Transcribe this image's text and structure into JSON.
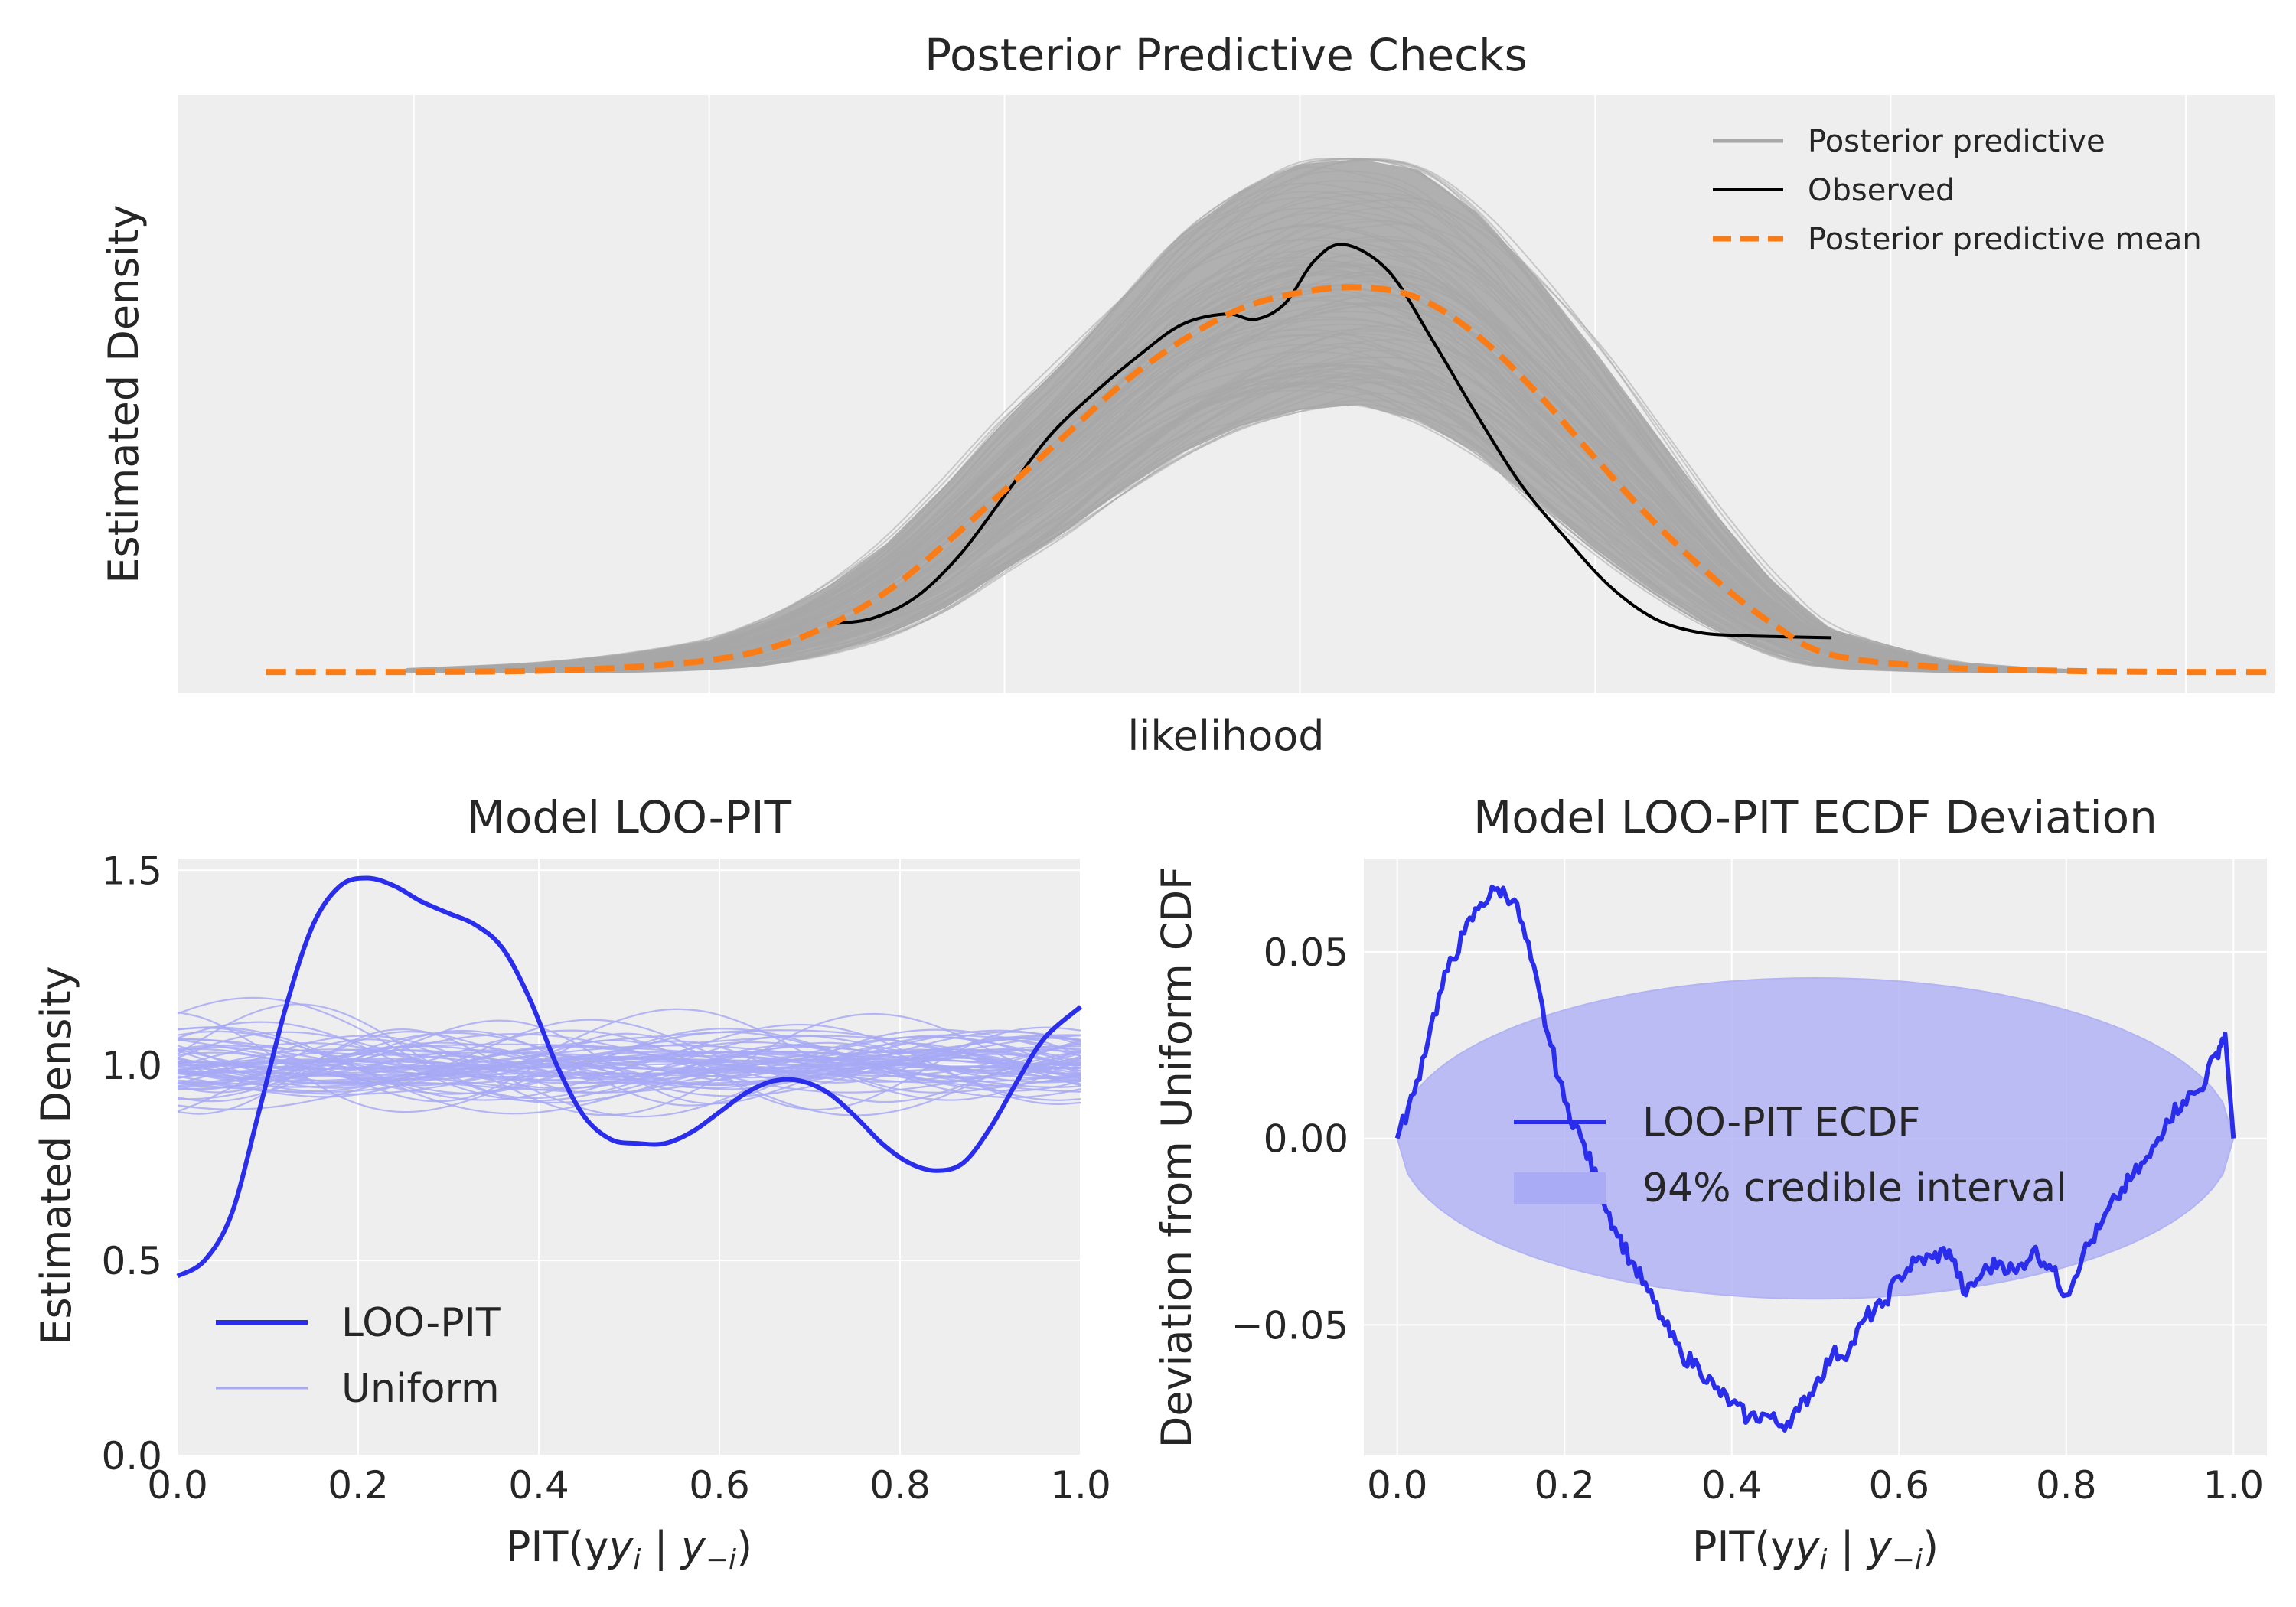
{
  "colors": {
    "panel_bg": "#eeeeee",
    "grid": "#ffffff",
    "posterior_predictive": "#a8a8a8",
    "observed": "#000000",
    "pp_mean": "#fa7c17",
    "loo_pit": "#2a2eec",
    "uniform": "#a7a9f5",
    "band_fill": "#b3b4f5",
    "text": "#262626"
  },
  "chart_data": [
    {
      "type": "line",
      "title": "Posterior Predictive Checks",
      "xlabel": "likelihood",
      "ylabel": "Estimated Density",
      "ticks_hidden": true,
      "grid": true,
      "legend": {
        "placement": "top-right",
        "entries": [
          "Posterior predictive",
          "Observed",
          "Posterior predictive mean"
        ]
      },
      "xlim": [
        -3.8,
        3.3
      ],
      "ylim": [
        -0.02,
        0.54
      ],
      "observed": {
        "x": [
          -1.6,
          -1.45,
          -1.3,
          -1.15,
          -1.0,
          -0.85,
          -0.7,
          -0.55,
          -0.4,
          -0.25,
          -0.15,
          -0.05,
          0.05,
          0.15,
          0.3,
          0.45,
          0.6,
          0.75,
          0.9,
          1.05,
          1.2,
          1.35,
          1.5,
          1.62,
          1.8
        ],
        "y": [
          0.045,
          0.05,
          0.07,
          0.11,
          0.165,
          0.22,
          0.26,
          0.295,
          0.325,
          0.335,
          0.33,
          0.345,
          0.385,
          0.4,
          0.375,
          0.31,
          0.24,
          0.175,
          0.125,
          0.08,
          0.05,
          0.037,
          0.034,
          0.033,
          0.032
        ]
      },
      "pp_mean": {
        "x": [
          -3.5,
          -3.0,
          -2.6,
          -2.3,
          -2.0,
          -1.8,
          -1.6,
          -1.4,
          -1.2,
          -1.0,
          -0.8,
          -0.6,
          -0.4,
          -0.2,
          0.0,
          0.2,
          0.4,
          0.6,
          0.8,
          1.0,
          1.2,
          1.4,
          1.6,
          1.8,
          2.2,
          2.6,
          3.0,
          3.3
        ],
        "y": [
          0.0,
          0.0,
          0.001,
          0.004,
          0.011,
          0.022,
          0.043,
          0.075,
          0.12,
          0.17,
          0.22,
          0.27,
          0.31,
          0.34,
          0.355,
          0.36,
          0.35,
          0.315,
          0.262,
          0.2,
          0.14,
          0.088,
          0.045,
          0.016,
          0.004,
          0.001,
          0.0,
          0.0
        ]
      },
      "posterior_predictive_band": {
        "x": [
          -3.0,
          -2.6,
          -2.3,
          -2.0,
          -1.8,
          -1.6,
          -1.4,
          -1.2,
          -1.0,
          -0.8,
          -0.6,
          -0.4,
          -0.2,
          0.0,
          0.2,
          0.4,
          0.6,
          0.8,
          1.0,
          1.2,
          1.4,
          1.6,
          1.8,
          2.2,
          2.6
        ],
        "lower": [
          0.0,
          0.0,
          0.0,
          0.003,
          0.008,
          0.018,
          0.035,
          0.06,
          0.095,
          0.13,
          0.17,
          0.205,
          0.23,
          0.245,
          0.25,
          0.235,
          0.205,
          0.16,
          0.115,
          0.075,
          0.042,
          0.018,
          0.005,
          0.0,
          0.0
        ],
        "upper": [
          0.003,
          0.008,
          0.016,
          0.03,
          0.05,
          0.08,
          0.12,
          0.175,
          0.235,
          0.29,
          0.35,
          0.41,
          0.45,
          0.475,
          0.48,
          0.47,
          0.43,
          0.37,
          0.3,
          0.225,
          0.15,
          0.085,
          0.04,
          0.01,
          0.002
        ],
        "draws": 120
      }
    },
    {
      "type": "line",
      "title": "Model LOO-PIT",
      "xlabel": "PIT(y",
      "ylabel": "Estimated Density",
      "xlim": [
        0.0,
        1.0
      ],
      "ylim": [
        0.0,
        1.53
      ],
      "xticks": [
        "0.0",
        "0.2",
        "0.4",
        "0.6",
        "0.8",
        "1.0"
      ],
      "xtick_values": [
        0.0,
        0.2,
        0.4,
        0.6,
        0.8,
        1.0
      ],
      "yticks": [
        "0.0",
        "0.5",
        "1.0",
        "1.5"
      ],
      "ytick_values": [
        0.0,
        0.5,
        1.0,
        1.5
      ],
      "grid": true,
      "legend": {
        "placement": "lower-left",
        "entries": [
          "LOO-PIT",
          "Uniform"
        ]
      },
      "loo_pit": {
        "x": [
          0.0,
          0.03,
          0.06,
          0.09,
          0.12,
          0.15,
          0.18,
          0.21,
          0.24,
          0.27,
          0.3,
          0.33,
          0.36,
          0.39,
          0.42,
          0.45,
          0.48,
          0.51,
          0.54,
          0.57,
          0.6,
          0.63,
          0.66,
          0.69,
          0.72,
          0.75,
          0.78,
          0.81,
          0.84,
          0.87,
          0.9,
          0.93,
          0.96,
          1.0
        ],
        "y": [
          0.46,
          0.5,
          0.62,
          0.88,
          1.15,
          1.36,
          1.46,
          1.48,
          1.46,
          1.42,
          1.39,
          1.36,
          1.3,
          1.17,
          1.0,
          0.87,
          0.81,
          0.8,
          0.8,
          0.83,
          0.88,
          0.93,
          0.96,
          0.96,
          0.93,
          0.87,
          0.8,
          0.75,
          0.73,
          0.75,
          0.84,
          0.96,
          1.07,
          1.15
        ]
      },
      "uniform_draws": 60,
      "uniform_range": [
        0.74,
        1.24
      ]
    },
    {
      "type": "line",
      "title": "Model LOO-PIT ECDF Deviation",
      "xlabel": "PIT(y",
      "ylabel": "Deviation from Uniform CDF",
      "xlim": [
        -0.04,
        1.04
      ],
      "ylim": [
        -0.085,
        0.075
      ],
      "xticks": [
        "0.0",
        "0.2",
        "0.4",
        "0.6",
        "0.8",
        "1.0"
      ],
      "xtick_values": [
        0.0,
        0.2,
        0.4,
        0.6,
        0.8,
        1.0
      ],
      "yticks": [
        "0.05",
        "0.00",
        "−0.05"
      ],
      "ytick_values": [
        0.05,
        0.0,
        -0.05
      ],
      "grid": true,
      "legend": {
        "placement": "center",
        "entries": [
          "LOO-PIT ECDF",
          "94% credible interval"
        ]
      },
      "ecdf": {
        "x": [
          0.0,
          0.02,
          0.04,
          0.06,
          0.08,
          0.1,
          0.12,
          0.14,
          0.16,
          0.18,
          0.2,
          0.22,
          0.24,
          0.26,
          0.28,
          0.3,
          0.32,
          0.34,
          0.36,
          0.38,
          0.4,
          0.42,
          0.44,
          0.46,
          0.48,
          0.5,
          0.52,
          0.54,
          0.56,
          0.58,
          0.6,
          0.62,
          0.64,
          0.66,
          0.68,
          0.7,
          0.72,
          0.74,
          0.76,
          0.78,
          0.8,
          0.82,
          0.84,
          0.86,
          0.88,
          0.9,
          0.92,
          0.94,
          0.96,
          0.98,
          0.99,
          1.0
        ],
        "y": [
          0.0,
          0.012,
          0.03,
          0.045,
          0.055,
          0.063,
          0.067,
          0.064,
          0.048,
          0.028,
          0.01,
          0.0,
          -0.012,
          -0.024,
          -0.033,
          -0.041,
          -0.05,
          -0.058,
          -0.061,
          -0.067,
          -0.071,
          -0.075,
          -0.074,
          -0.077,
          -0.073,
          -0.066,
          -0.058,
          -0.057,
          -0.048,
          -0.045,
          -0.037,
          -0.033,
          -0.032,
          -0.03,
          -0.042,
          -0.036,
          -0.033,
          -0.036,
          -0.03,
          -0.034,
          -0.042,
          -0.031,
          -0.024,
          -0.016,
          -0.01,
          -0.005,
          0.005,
          0.01,
          0.013,
          0.023,
          0.028,
          0.0
        ]
      },
      "band": {
        "x_center": 0.5,
        "x_half_width": 0.5,
        "y_half_height": 0.043
      }
    }
  ]
}
